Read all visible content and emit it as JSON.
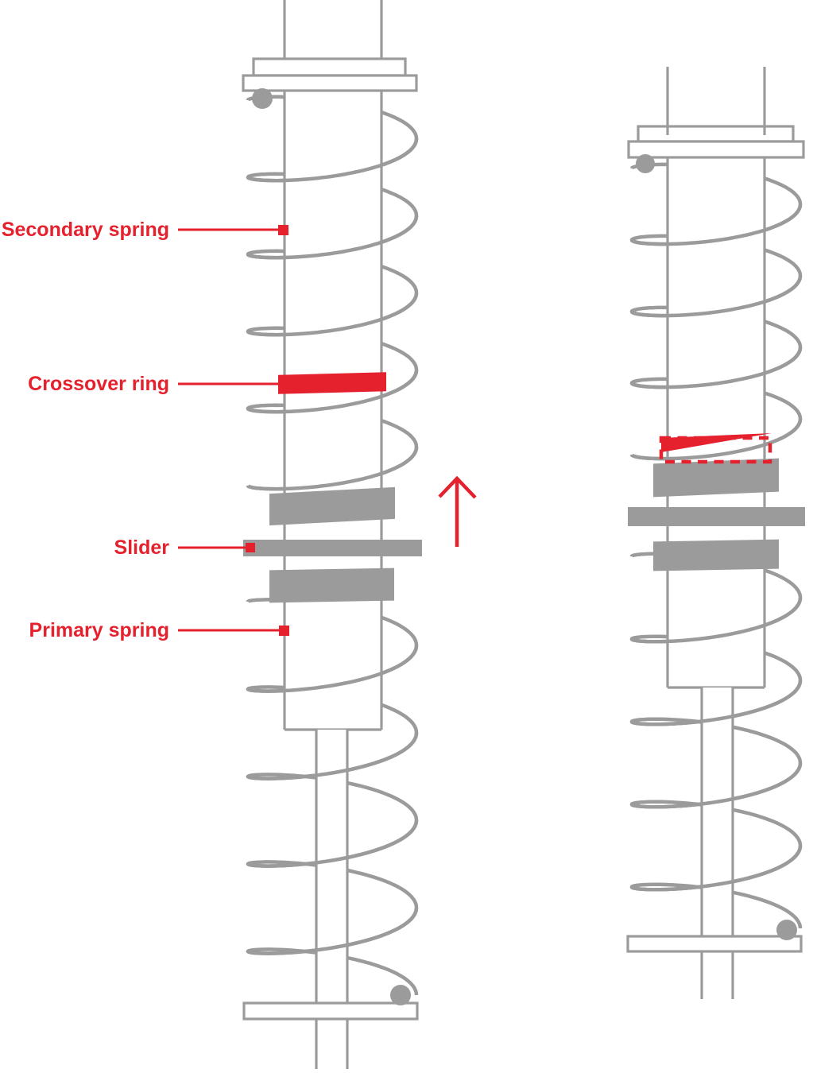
{
  "background": "#ffffff",
  "colors": {
    "red": "#e5212e",
    "gray": "#9b9b9b",
    "white": "#ffffff"
  },
  "labels": [
    {
      "id": "secondary-spring",
      "text": "Secondary spring"
    },
    {
      "id": "crossover-ring",
      "text": "Crossover ring"
    },
    {
      "id": "slider",
      "text": "Slider"
    },
    {
      "id": "primary-spring",
      "text": "Primary spring"
    }
  ],
  "icons": {
    "arrow": "arrow-up-icon"
  },
  "figures": [
    {
      "id": "coilover-extended",
      "description": "two-stage coilover, crossover ring up"
    },
    {
      "id": "coilover-compressed",
      "description": "two-stage coilover, crossover ring seated on slider"
    }
  ]
}
